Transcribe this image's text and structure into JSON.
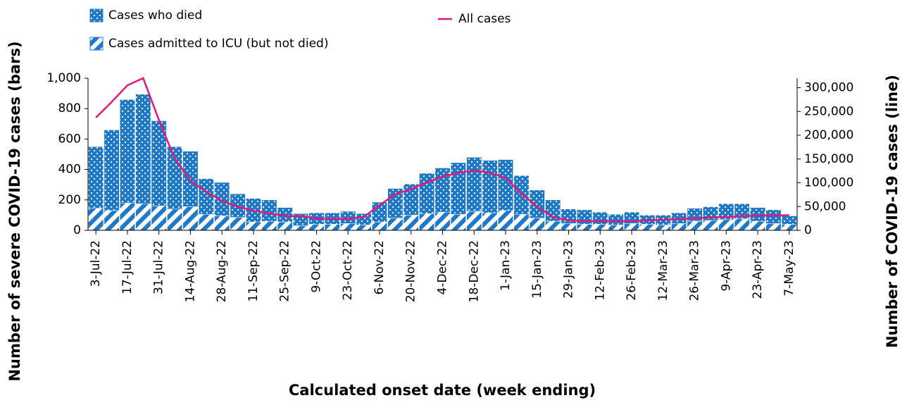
{
  "chart_data": {
    "type": "bar-line",
    "x_label": "Calculated onset date (week ending)",
    "y_label": "Number of severe COVID-19 cases (bars)",
    "y2_label": "Number of COVID-19 cases (line)",
    "categories": [
      "3-Jul-22",
      null,
      "17-Jul-22",
      null,
      "31-Jul-22",
      null,
      "14-Aug-22",
      null,
      "28-Aug-22",
      null,
      "11-Sep-22",
      null,
      "25-Sep-22",
      null,
      "9-Oct-22",
      null,
      "23-Oct-22",
      null,
      "6-Nov-22",
      null,
      "20-Nov-22",
      null,
      "4-Dec-22",
      null,
      "18-Dec-22",
      null,
      "1-Jan-23",
      null,
      "15-Jan-23",
      null,
      "29-Jan-23",
      null,
      "12-Feb-23",
      null,
      "26-Feb-23",
      null,
      "12-Mar-23",
      null,
      "26-Mar-23",
      null,
      "9-Apr-23",
      null,
      "23-Apr-23",
      null,
      "7-May-23"
    ],
    "series": [
      {
        "name": "Cases admitted to ICU (but not died)",
        "type": "bar",
        "pattern": "stripes",
        "color": "#1f78c8",
        "values": [
          145,
          130,
          180,
          175,
          160,
          140,
          155,
          105,
          95,
          85,
          55,
          60,
          55,
          30,
          40,
          40,
          45,
          35,
          55,
          80,
          100,
          110,
          120,
          105,
          125,
          115,
          130,
          105,
          80,
          60,
          45,
          40,
          40,
          35,
          45,
          40,
          35,
          45,
          60,
          65,
          70,
          75,
          60,
          45,
          40
        ]
      },
      {
        "name": "Cases who died",
        "type": "bar",
        "pattern": "dots",
        "color": "#1f78c8",
        "values": [
          405,
          530,
          680,
          720,
          560,
          410,
          365,
          235,
          220,
          155,
          155,
          140,
          95,
          80,
          75,
          75,
          80,
          75,
          130,
          195,
          205,
          265,
          290,
          340,
          355,
          345,
          335,
          255,
          185,
          140,
          95,
          95,
          80,
          70,
          75,
          60,
          65,
          70,
          85,
          90,
          105,
          100,
          90,
          90,
          55
        ]
      },
      {
        "name": "All cases",
        "type": "line",
        "axis": "y2",
        "color": "#e6157a",
        "values": [
          237000,
          270000,
          305000,
          320000,
          232000,
          151000,
          104000,
          81000,
          62000,
          50000,
          41000,
          36000,
          30000,
          30000,
          25000,
          24000,
          24000,
          28000,
          53000,
          76000,
          87000,
          101000,
          113000,
          121000,
          126000,
          121000,
          110000,
          77000,
          50000,
          28000,
          21000,
          19000,
          19000,
          19000,
          19000,
          21000,
          22000,
          24000,
          25000,
          27000,
          28000,
          30000,
          31000,
          31000,
          32000
        ]
      }
    ],
    "ylim": [
      0,
      1000
    ],
    "yticks": [
      0,
      200,
      400,
      600,
      800,
      {
        "value": 1000,
        "label": "1,000"
      }
    ],
    "y2lim": [
      0,
      320000
    ],
    "y2ticks": [
      0,
      {
        "value": 50000,
        "label": "50,000"
      },
      {
        "value": 100000,
        "label": "100,000"
      },
      {
        "value": 150000,
        "label": "150,000"
      },
      {
        "value": 200000,
        "label": "200,000"
      },
      {
        "value": 250000,
        "label": "250,000"
      },
      {
        "value": 300000,
        "label": "300,000"
      }
    ]
  }
}
